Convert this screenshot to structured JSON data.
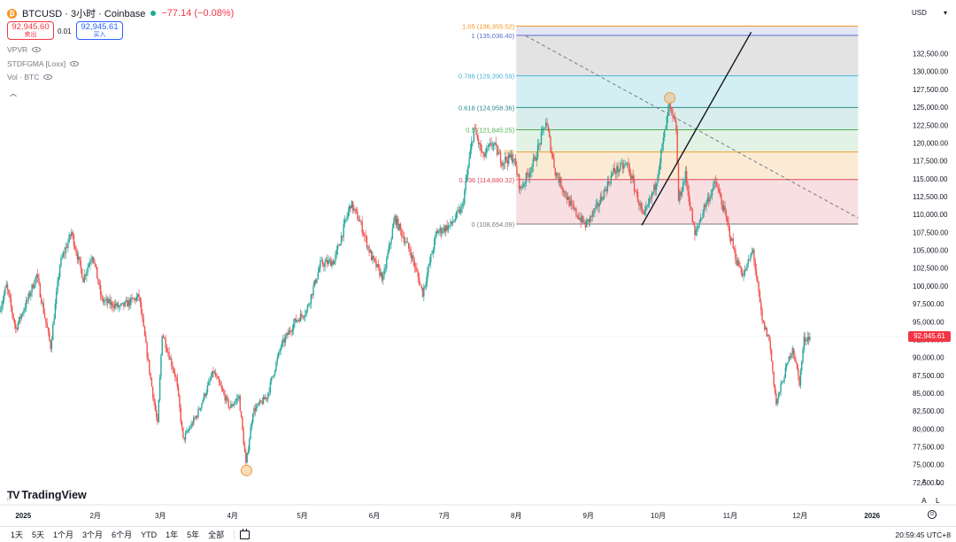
{
  "header": {
    "symbol_title": "BTCUSD · 3小时 · Coinbase",
    "change": "−77.14 (−0.08%)",
    "sell_price": "92,945.60",
    "sell_label": "卖出",
    "spread": "0.01",
    "buy_price": "92,945.61",
    "buy_label": "买入",
    "btc_icon_glyph": "₿"
  },
  "indicators": [
    {
      "name": "VPVR"
    },
    {
      "name": "STDFGMA [Loxx]"
    },
    {
      "name": "Vol · BTC"
    }
  ],
  "currency": "USD",
  "last_price_tag": "92,945.61",
  "branding": {
    "logo_mark": "TV",
    "logo_text": "TradingView",
    "session_label": "R"
  },
  "scale_buttons": {
    "auto": "A",
    "log": "L"
  },
  "toolbar": {
    "timeframes": [
      "1天",
      "5天",
      "1个月",
      "3个月",
      "6个月",
      "YTD",
      "1年",
      "5年",
      "全部"
    ],
    "clock": "20:59:45 UTC+8",
    "goto_glyph": "⊙"
  },
  "colors": {
    "candle_up": "#26a69a",
    "candle_down": "#ef5350",
    "accent": "#2962ff",
    "marker": "#f7b267"
  },
  "chart_data": {
    "type": "candlestick",
    "symbol": "BTCUSD",
    "interval": "3h",
    "exchange": "Coinbase",
    "y_axis": {
      "range": [
        71500,
        139500
      ],
      "ticks": [
        72500,
        75000,
        77500,
        80000,
        82500,
        85000,
        87500,
        90000,
        92500,
        95000,
        97500,
        100000,
        102500,
        105000,
        107500,
        110000,
        112500,
        115000,
        117500,
        120000,
        122500,
        125000,
        127500,
        130000,
        132500
      ],
      "tick_labels": [
        "72,500.00",
        "75,000.00",
        "77,500.00",
        "80,000.00",
        "82,500.00",
        "85,000.00",
        "87,500.00",
        "90,000.00",
        "92,500.00",
        "95,000.00",
        "97,500.00",
        "100,000.00",
        "102,500.00",
        "105,000.00",
        "107,500.00",
        "110,000.00",
        "112,500.00",
        "115,000.00",
        "117,500.00",
        "120,000.00",
        "122,500.00",
        "125,000.00",
        "127,500.00",
        "130,000.00",
        "132,500.00"
      ]
    },
    "x_axis": {
      "range": [
        "2024-12-22",
        "2026-01-15"
      ],
      "ticks": [
        "2025-01-01",
        "2025-02-01",
        "2025-03-01",
        "2025-04-01",
        "2025-05-01",
        "2025-06-01",
        "2025-07-01",
        "2025-08-01",
        "2025-09-01",
        "2025-10-01",
        "2025-11-01",
        "2025-12-01",
        "2026-01-01"
      ],
      "tick_labels": [
        "2025",
        "2月",
        "3月",
        "4月",
        "5月",
        "6月",
        "7月",
        "8月",
        "9月",
        "10月",
        "11月",
        "12月",
        "2026"
      ]
    },
    "price_path": [
      [
        "2024-12-22",
        96500
      ],
      [
        "2024-12-25",
        100000
      ],
      [
        "2024-12-29",
        94000
      ],
      [
        "2025-01-03",
        98000
      ],
      [
        "2025-01-07",
        101500
      ],
      [
        "2025-01-13",
        91500
      ],
      [
        "2025-01-17",
        103000
      ],
      [
        "2025-01-22",
        107500
      ],
      [
        "2025-01-27",
        101000
      ],
      [
        "2025-01-31",
        104500
      ],
      [
        "2025-02-04",
        98000
      ],
      [
        "2025-02-12",
        97000
      ],
      [
        "2025-02-20",
        98500
      ],
      [
        "2025-02-25",
        87000
      ],
      [
        "2025-02-28",
        80500
      ],
      [
        "2025-03-02",
        93500
      ],
      [
        "2025-03-08",
        87000
      ],
      [
        "2025-03-11",
        78500
      ],
      [
        "2025-03-17",
        82000
      ],
      [
        "2025-03-24",
        88000
      ],
      [
        "2025-03-31",
        83000
      ],
      [
        "2025-04-04",
        84500
      ],
      [
        "2025-04-07",
        75000
      ],
      [
        "2025-04-10",
        82500
      ],
      [
        "2025-04-16",
        84500
      ],
      [
        "2025-04-22",
        91500
      ],
      [
        "2025-04-28",
        95000
      ],
      [
        "2025-05-03",
        96500
      ],
      [
        "2025-05-09",
        103000
      ],
      [
        "2025-05-15",
        103500
      ],
      [
        "2025-05-22",
        111500
      ],
      [
        "2025-05-26",
        109000
      ],
      [
        "2025-05-31",
        104000
      ],
      [
        "2025-06-05",
        101000
      ],
      [
        "2025-06-10",
        109500
      ],
      [
        "2025-06-17",
        104500
      ],
      [
        "2025-06-22",
        99000
      ],
      [
        "2025-06-28",
        107500
      ],
      [
        "2025-07-04",
        108500
      ],
      [
        "2025-07-09",
        111000
      ],
      [
        "2025-07-14",
        122000
      ],
      [
        "2025-07-18",
        118000
      ],
      [
        "2025-07-22",
        120000
      ],
      [
        "2025-07-26",
        117500
      ],
      [
        "2025-07-31",
        118000
      ],
      [
        "2025-08-03",
        113500
      ],
      [
        "2025-08-09",
        117500
      ],
      [
        "2025-08-14",
        123000
      ],
      [
        "2025-08-18",
        116000
      ],
      [
        "2025-08-25",
        111000
      ],
      [
        "2025-08-31",
        108500
      ],
      [
        "2025-09-05",
        111000
      ],
      [
        "2025-09-12",
        116000
      ],
      [
        "2025-09-18",
        117000
      ],
      [
        "2025-09-25",
        109500
      ],
      [
        "2025-09-30",
        114000
      ],
      [
        "2025-10-06",
        125000
      ],
      [
        "2025-10-09",
        122000
      ],
      [
        "2025-10-10",
        112000
      ],
      [
        "2025-10-13",
        115500
      ],
      [
        "2025-10-17",
        107000
      ],
      [
        "2025-10-21",
        111000
      ],
      [
        "2025-10-26",
        114500
      ],
      [
        "2025-10-30",
        110000
      ],
      [
        "2025-11-04",
        103500
      ],
      [
        "2025-11-07",
        101500
      ],
      [
        "2025-11-11",
        105000
      ],
      [
        "2025-11-15",
        95000
      ],
      [
        "2025-11-18",
        92500
      ],
      [
        "2025-11-21",
        83500
      ],
      [
        "2025-11-24",
        87000
      ],
      [
        "2025-11-28",
        91500
      ],
      [
        "2025-12-01",
        86500
      ],
      [
        "2025-12-03",
        92500
      ],
      [
        "2025-12-05",
        92945.61
      ]
    ],
    "last_price": 92945.61,
    "fibonacci": {
      "range": [
        "2025-08-01",
        "2025-12-26"
      ],
      "levels": [
        {
          "ratio": "1.05",
          "price": 136355.52,
          "label": "1.05 (136,355.52)",
          "color": "#f7931a",
          "fill": "#ffffff"
        },
        {
          "ratio": "1",
          "price": 135036.4,
          "label": "1 (135,036.40)",
          "color": "#5d6bcd",
          "fill": "#e3e6f6"
        },
        {
          "ratio": "0.786",
          "price": 129390.59,
          "label": "0.786 (129,390.59)",
          "color": "#4ab3d6",
          "fill": "#e3e3e3"
        },
        {
          "ratio": "0.618",
          "price": 124958.36,
          "label": "0.618 (124,958.36)",
          "color": "#2a8a8a",
          "fill": "#d3eff4"
        },
        {
          "ratio": "0.5",
          "price": 121845.25,
          "label": "0.5 (121,845.25)",
          "color": "#4caf50",
          "fill": "#d9eeec"
        },
        {
          "ratio": "0.382",
          "price": 118735.32,
          "label": "0.382",
          "color": "#f0a030",
          "fill": "#e2f2e4"
        },
        {
          "ratio": "0.236",
          "price": 114880.32,
          "label": "0.236 (114,880.32)",
          "color": "#e0455a",
          "fill": "#fcebd4"
        },
        {
          "ratio": "0",
          "price": 108654.09,
          "label": "0 (108,654.09)",
          "color": "#787b86",
          "fill": "#f8dfe2"
        }
      ]
    },
    "trendlines": [
      {
        "style": "dashed",
        "color": "#787b86",
        "from": [
          "2025-08-05",
          135000
        ],
        "to": [
          "2025-12-26",
          109500
        ]
      },
      {
        "style": "solid",
        "color": "#131722",
        "from": [
          "2025-09-24",
          108500
        ],
        "to": [
          "2025-11-10",
          135500
        ]
      }
    ],
    "markers": [
      {
        "date": "2025-04-07",
        "price": 74200,
        "color": "#f7b267"
      },
      {
        "date": "2025-10-06",
        "price": 126300,
        "color": "#f7b267"
      }
    ]
  }
}
